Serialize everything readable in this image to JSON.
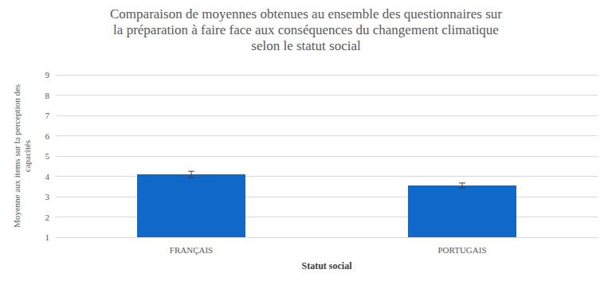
{
  "chart_data": {
    "type": "bar",
    "title": "Comparaison de moyennes obtenues au ensemble des questionnaires sur\nla préparation à faire face aux conséquences du changement climatique\nselon le statut social",
    "x_label": "Statut social",
    "y_label": "Moyenne aux items sur la perception des\ncapacités",
    "categories": [
      "FRANÇAIS",
      "PORTUGAIS"
    ],
    "values": [
      4.1,
      3.55
    ],
    "errors": [
      0.15,
      0.12
    ],
    "color": "#1068c8",
    "ylim": [
      1,
      9
    ],
    "yticks": [
      1,
      2,
      3,
      4,
      5,
      6,
      7,
      8,
      9
    ],
    "grid": true
  }
}
